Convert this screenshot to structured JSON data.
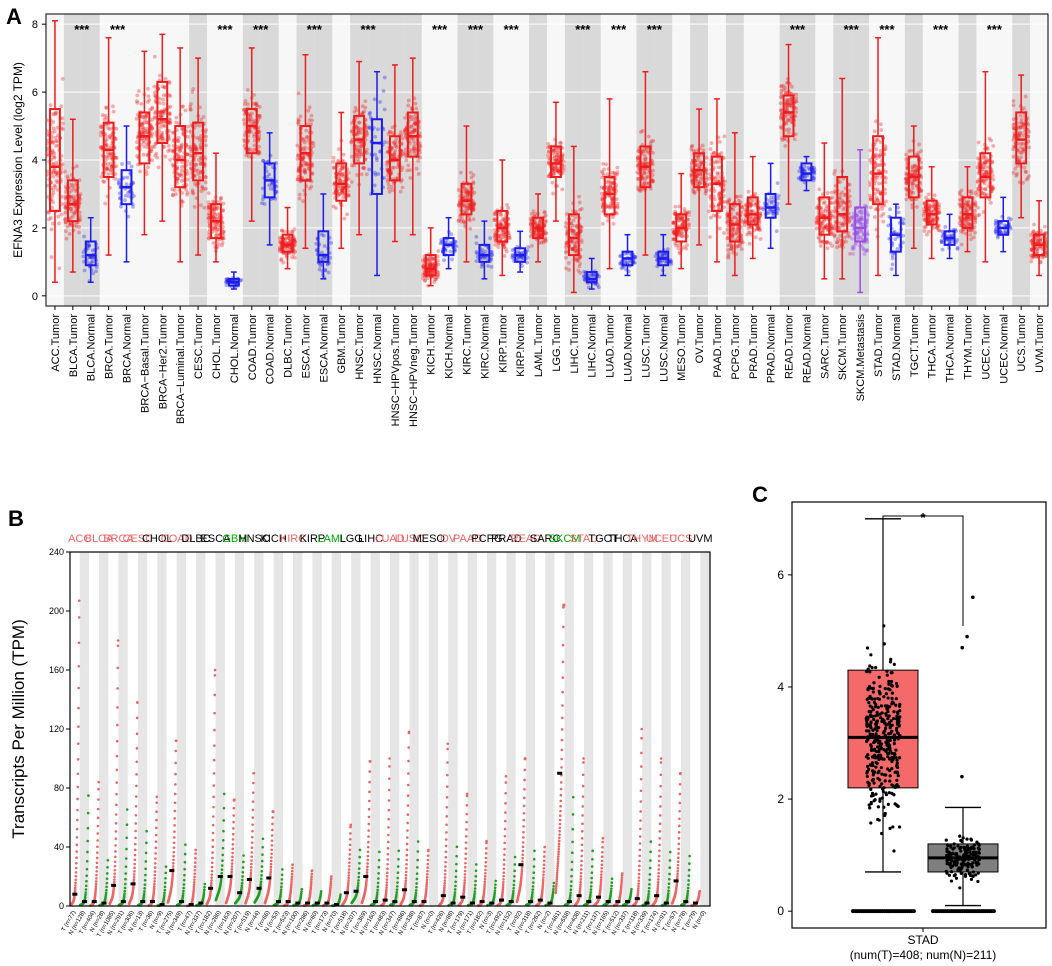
{
  "chart_data": [
    {
      "panel": "A",
      "type": "box",
      "ylabel": "EFNA3 Expression Level (log2 TPM)",
      "ylim": [
        -0.3,
        8.3
      ],
      "yticks": [
        0,
        2,
        4,
        6,
        8
      ],
      "categories": [
        "ACC.Tumor",
        "BLCA.Tumor",
        "BLCA.Normal",
        "BRCA.Tumor",
        "BRCA.Normal",
        "BRCA−Basal.Tumor",
        "BRCA−Her2.Tumor",
        "BRCA−Luminal.Tumor",
        "CESC.Tumor",
        "CHOL.Tumor",
        "CHOL.Normal",
        "COAD.Tumor",
        "COAD.Normal",
        "DLBC.Tumor",
        "ESCA.Tumor",
        "ESCA.Normal",
        "GBM.Tumor",
        "HNSC.Tumor",
        "HNSC.Normal",
        "HNSC−HPVpos.Tumor",
        "HNSC−HPVneg.Tumor",
        "KICH.Tumor",
        "KICH.Normal",
        "KIRC.Tumor",
        "KIRC.Normal",
        "KIRP.Tumor",
        "KIRP.Normal",
        "LAML.Tumor",
        "LGG.Tumor",
        "LIHC.Tumor",
        "LIHC.Normal",
        "LUAD.Tumor",
        "LUAD.Normal",
        "LUSC.Tumor",
        "LUSC.Normal",
        "MESO.Tumor",
        "OV.Tumor",
        "PAAD.Tumor",
        "PCPG.Tumor",
        "PRAD.Tumor",
        "PRAD.Normal",
        "READ.Tumor",
        "READ.Normal",
        "SARC.Tumor",
        "SKCM.Tumor",
        "SKCM.Metastasis",
        "STAD.Tumor",
        "STAD.Normal",
        "TGCT.Tumor",
        "THCA.Tumor",
        "THCA.Normal",
        "THYM.Tumor",
        "UCEC.Tumor",
        "UCEC.Normal",
        "UCS.Tumor",
        "UVM.Tumor"
      ],
      "boxes": [
        {
          "kind": "T",
          "q1": 2.5,
          "median": 3.8,
          "q3": 5.5,
          "lo": 0.4,
          "hi": 8.1
        },
        {
          "kind": "T",
          "q1": 2.2,
          "median": 2.7,
          "q3": 3.4,
          "lo": 0.7,
          "hi": 5.2
        },
        {
          "kind": "N",
          "q1": 0.9,
          "median": 1.2,
          "q3": 1.6,
          "lo": 0.4,
          "hi": 2.3
        },
        {
          "kind": "T",
          "q1": 3.5,
          "median": 4.3,
          "q3": 5.1,
          "lo": 1.2,
          "hi": 7.6
        },
        {
          "kind": "N",
          "q1": 2.7,
          "median": 3.2,
          "q3": 3.7,
          "lo": 1.0,
          "hi": 5.0
        },
        {
          "kind": "T",
          "q1": 3.9,
          "median": 4.7,
          "q3": 5.4,
          "lo": 1.8,
          "hi": 7.2
        },
        {
          "kind": "T",
          "q1": 4.5,
          "median": 5.2,
          "q3": 6.3,
          "lo": 2.2,
          "hi": 7.7
        },
        {
          "kind": "T",
          "q1": 3.2,
          "median": 4.0,
          "q3": 5.0,
          "lo": 1.0,
          "hi": 7.3
        },
        {
          "kind": "T",
          "q1": 3.4,
          "median": 4.2,
          "q3": 5.1,
          "lo": 1.2,
          "hi": 7.0
        },
        {
          "kind": "T",
          "q1": 1.7,
          "median": 2.2,
          "q3": 2.7,
          "lo": 1.0,
          "hi": 4.2
        },
        {
          "kind": "N",
          "q1": 0.3,
          "median": 0.4,
          "q3": 0.5,
          "lo": 0.2,
          "hi": 0.7
        },
        {
          "kind": "T",
          "q1": 4.2,
          "median": 5.0,
          "q3": 5.5,
          "lo": 2.2,
          "hi": 7.3
        },
        {
          "kind": "N",
          "q1": 2.9,
          "median": 3.4,
          "q3": 3.9,
          "lo": 1.5,
          "hi": 4.8
        },
        {
          "kind": "T",
          "q1": 1.3,
          "median": 1.5,
          "q3": 1.8,
          "lo": 0.8,
          "hi": 2.6
        },
        {
          "kind": "T",
          "q1": 3.4,
          "median": 4.2,
          "q3": 5.0,
          "lo": 1.4,
          "hi": 7.1
        },
        {
          "kind": "N",
          "q1": 1.0,
          "median": 1.2,
          "q3": 1.9,
          "lo": 0.5,
          "hi": 3.0
        },
        {
          "kind": "T",
          "q1": 2.8,
          "median": 3.3,
          "q3": 3.9,
          "lo": 1.4,
          "hi": 5.4
        },
        {
          "kind": "T",
          "q1": 3.9,
          "median": 4.6,
          "q3": 5.3,
          "lo": 1.8,
          "hi": 6.9
        },
        {
          "kind": "N",
          "q1": 3.0,
          "median": 4.5,
          "q3": 5.2,
          "lo": 0.6,
          "hi": 6.6
        },
        {
          "kind": "T",
          "q1": 3.4,
          "median": 4.0,
          "q3": 4.7,
          "lo": 1.6,
          "hi": 6.8
        },
        {
          "kind": "T",
          "q1": 4.1,
          "median": 4.7,
          "q3": 5.4,
          "lo": 1.8,
          "hi": 7.0
        },
        {
          "kind": "T",
          "q1": 0.6,
          "median": 0.8,
          "q3": 1.2,
          "lo": 0.3,
          "hi": 2.0
        },
        {
          "kind": "N",
          "q1": 1.2,
          "median": 1.5,
          "q3": 1.7,
          "lo": 0.8,
          "hi": 2.3
        },
        {
          "kind": "T",
          "q1": 2.4,
          "median": 2.8,
          "q3": 3.3,
          "lo": 1.0,
          "hi": 5.0
        },
        {
          "kind": "N",
          "q1": 1.0,
          "median": 1.2,
          "q3": 1.5,
          "lo": 0.5,
          "hi": 2.2
        },
        {
          "kind": "T",
          "q1": 1.6,
          "median": 2.0,
          "q3": 2.5,
          "lo": 0.6,
          "hi": 4.0
        },
        {
          "kind": "N",
          "q1": 1.0,
          "median": 1.2,
          "q3": 1.4,
          "lo": 0.7,
          "hi": 1.9
        },
        {
          "kind": "T",
          "q1": 1.7,
          "median": 2.0,
          "q3": 2.3,
          "lo": 1.0,
          "hi": 3.0
        },
        {
          "kind": "T",
          "q1": 3.5,
          "median": 3.9,
          "q3": 4.4,
          "lo": 2.2,
          "hi": 5.7
        },
        {
          "kind": "T",
          "q1": 1.2,
          "median": 1.7,
          "q3": 2.4,
          "lo": 0.1,
          "hi": 4.4
        },
        {
          "kind": "N",
          "q1": 0.4,
          "median": 0.5,
          "q3": 0.7,
          "lo": 0.2,
          "hi": 1.1
        },
        {
          "kind": "T",
          "q1": 2.4,
          "median": 3.0,
          "q3": 3.5,
          "lo": 0.8,
          "hi": 5.8
        },
        {
          "kind": "N",
          "q1": 0.9,
          "median": 1.1,
          "q3": 1.3,
          "lo": 0.6,
          "hi": 1.8
        },
        {
          "kind": "T",
          "q1": 3.2,
          "median": 3.8,
          "q3": 4.4,
          "lo": 1.2,
          "hi": 6.6
        },
        {
          "kind": "N",
          "q1": 0.9,
          "median": 1.1,
          "q3": 1.3,
          "lo": 0.6,
          "hi": 1.8
        },
        {
          "kind": "T",
          "q1": 1.6,
          "median": 2.0,
          "q3": 2.4,
          "lo": 0.8,
          "hi": 3.6
        },
        {
          "kind": "T",
          "q1": 3.2,
          "median": 3.7,
          "q3": 4.2,
          "lo": 1.5,
          "hi": 5.5
        },
        {
          "kind": "T",
          "q1": 2.5,
          "median": 3.3,
          "q3": 4.1,
          "lo": 1.0,
          "hi": 5.8
        },
        {
          "kind": "T",
          "q1": 1.6,
          "median": 2.1,
          "q3": 2.7,
          "lo": 0.6,
          "hi": 4.8
        },
        {
          "kind": "T",
          "q1": 2.1,
          "median": 2.4,
          "q3": 2.9,
          "lo": 1.1,
          "hi": 4.1
        },
        {
          "kind": "N",
          "q1": 2.3,
          "median": 2.6,
          "q3": 3.0,
          "lo": 1.4,
          "hi": 3.9
        },
        {
          "kind": "T",
          "q1": 4.7,
          "median": 5.4,
          "q3": 5.9,
          "lo": 2.7,
          "hi": 7.4
        },
        {
          "kind": "N",
          "q1": 3.4,
          "median": 3.6,
          "q3": 3.9,
          "lo": 3.1,
          "hi": 4.1
        },
        {
          "kind": "T",
          "q1": 1.8,
          "median": 2.3,
          "q3": 2.9,
          "lo": 0.5,
          "hi": 4.5
        },
        {
          "kind": "T",
          "q1": 1.9,
          "median": 2.4,
          "q3": 3.5,
          "lo": 0.5,
          "hi": 6.4
        },
        {
          "kind": "M",
          "q1": 1.6,
          "median": 2.0,
          "q3": 2.6,
          "lo": 0.1,
          "hi": 4.3
        },
        {
          "kind": "T",
          "q1": 2.7,
          "median": 3.6,
          "q3": 4.7,
          "lo": 0.6,
          "hi": 7.6
        },
        {
          "kind": "N",
          "q1": 1.3,
          "median": 1.8,
          "q3": 2.3,
          "lo": 0.6,
          "hi": 2.7
        },
        {
          "kind": "T",
          "q1": 2.9,
          "median": 3.5,
          "q3": 4.1,
          "lo": 1.4,
          "hi": 5.0
        },
        {
          "kind": "T",
          "q1": 2.1,
          "median": 2.4,
          "q3": 2.8,
          "lo": 1.1,
          "hi": 3.8
        },
        {
          "kind": "N",
          "q1": 1.5,
          "median": 1.7,
          "q3": 1.9,
          "lo": 1.1,
          "hi": 2.4
        },
        {
          "kind": "T",
          "q1": 2.0,
          "median": 2.4,
          "q3": 2.9,
          "lo": 1.3,
          "hi": 3.8
        },
        {
          "kind": "T",
          "q1": 2.9,
          "median": 3.5,
          "q3": 4.2,
          "lo": 1.0,
          "hi": 6.6
        },
        {
          "kind": "N",
          "q1": 1.8,
          "median": 2.0,
          "q3": 2.2,
          "lo": 1.3,
          "hi": 2.9
        },
        {
          "kind": "T",
          "q1": 3.9,
          "median": 4.6,
          "q3": 5.4,
          "lo": 2.3,
          "hi": 6.5
        },
        {
          "kind": "T",
          "q1": 1.2,
          "median": 1.5,
          "q3": 1.8,
          "lo": 0.6,
          "hi": 2.8
        }
      ],
      "significance": [
        {
          "category": "BLCA.Tumor",
          "label": "***"
        },
        {
          "category": "BRCA.Tumor",
          "label": "***"
        },
        {
          "category": "CHOL.Tumor",
          "label": "***"
        },
        {
          "category": "COAD.Tumor",
          "label": "***"
        },
        {
          "category": "ESCA.Tumor",
          "label": "***"
        },
        {
          "category": "HNSC.Tumor",
          "label": "***"
        },
        {
          "category": "KICH.Tumor",
          "label": "***"
        },
        {
          "category": "KIRC.Tumor",
          "label": "***"
        },
        {
          "category": "KIRP.Tumor",
          "label": "***"
        },
        {
          "category": "LIHC.Tumor",
          "label": "***"
        },
        {
          "category": "LUAD.Tumor",
          "label": "***"
        },
        {
          "category": "LUSC.Tumor",
          "label": "***"
        },
        {
          "category": "READ.Tumor",
          "label": "***"
        },
        {
          "category": "SKCM.Tumor",
          "label": "***"
        },
        {
          "category": "STAD.Tumor",
          "label": "***"
        },
        {
          "category": "THCA.Tumor",
          "label": "***"
        },
        {
          "category": "UCEC.Tumor",
          "label": "***"
        }
      ],
      "colors": {
        "tumor": "#ee1c1c",
        "normal": "#1c1cee",
        "metastasis": "#9a4ce8",
        "band": "#d9d9d9",
        "grid": "#ececec"
      }
    },
    {
      "panel": "B",
      "type": "dot-strip",
      "ylabel": "Transcripts Per Million (TPM)",
      "ylim": [
        0,
        240
      ],
      "yticks": [
        0,
        40,
        80,
        120,
        160,
        200,
        240
      ],
      "cancers": [
        {
          "name": "ACC",
          "color": "#f06464",
          "nt": 77,
          "nn": 128,
          "medT": 8,
          "medN": 3,
          "maxT": 207
        },
        {
          "name": "BLCA",
          "color": "#f06464",
          "nt": 404,
          "nn": 28,
          "medT": 3,
          "medN": 2,
          "maxT": 84
        },
        {
          "name": "BRCA",
          "color": "#f06464",
          "nt": 1085,
          "nn": 291,
          "medT": 14,
          "medN": 3,
          "maxT": 180
        },
        {
          "name": "CESC",
          "color": "#f06464",
          "nt": 306,
          "nn": 13,
          "medT": 15,
          "medN": 3,
          "maxT": 138
        },
        {
          "name": "CHOL",
          "color": "#000000",
          "nt": 36,
          "nn": 9,
          "medT": 3,
          "medN": 1,
          "maxT": 74
        },
        {
          "name": "COAD",
          "color": "#f06464",
          "nt": 275,
          "nn": 349,
          "medT": 24,
          "medN": 3,
          "maxT": 112
        },
        {
          "name": "DLBC",
          "color": "#000000",
          "nt": 47,
          "nn": 337,
          "medT": 1,
          "medN": 2,
          "maxT": 38
        },
        {
          "name": "ESCA",
          "color": "#000000",
          "nt": 182,
          "nn": 286,
          "medT": 12,
          "medN": 20,
          "maxT": 160
        },
        {
          "name": "GBM",
          "color": "#00aa00",
          "nt": 163,
          "nn": 207,
          "medT": 20,
          "medN": 9,
          "maxT": 72
        },
        {
          "name": "HNSC",
          "color": "#000000",
          "nt": 519,
          "nn": 44,
          "medT": 18,
          "medN": 12,
          "maxT": 90
        },
        {
          "name": "KICH",
          "color": "#000000",
          "nt": 66,
          "nn": 53,
          "medT": 19,
          "medN": 3,
          "maxT": 64
        },
        {
          "name": "KIRC",
          "color": "#f06464",
          "nt": 523,
          "nn": 100,
          "medT": 3,
          "medN": 2,
          "maxT": 28
        },
        {
          "name": "KIRP",
          "color": "#000000",
          "nt": 286,
          "nn": 60,
          "medT": 2,
          "medN": 2,
          "maxT": 24
        },
        {
          "name": "LAML",
          "color": "#00aa00",
          "nt": 173,
          "nn": 70,
          "medT": 2,
          "medN": 1,
          "maxT": 20
        },
        {
          "name": "LGG",
          "color": "#000000",
          "nt": 518,
          "nn": 207,
          "medT": 9,
          "medN": 10,
          "maxT": 55
        },
        {
          "name": "LIHC",
          "color": "#000000",
          "nt": 369,
          "nn": 160,
          "medT": 20,
          "medN": 3,
          "maxT": 98
        },
        {
          "name": "LUAD",
          "color": "#f06464",
          "nt": 483,
          "nn": 347,
          "medT": 4,
          "medN": 3,
          "maxT": 100
        },
        {
          "name": "LUSC",
          "color": "#f06464",
          "nt": 486,
          "nn": 338,
          "medT": 11,
          "medN": 3,
          "maxT": 118
        },
        {
          "name": "MESO",
          "color": "#000000",
          "nt": 87,
          "nn": 0,
          "medT": 3,
          "medN": 0,
          "maxT": 38
        },
        {
          "name": "OV",
          "color": "#f06464",
          "nt": 426,
          "nn": 88,
          "medT": 7,
          "medN": 2,
          "maxT": 110
        },
        {
          "name": "PAAD",
          "color": "#f06464",
          "nt": 179,
          "nn": 171,
          "medT": 6,
          "medN": 2,
          "maxT": 76
        },
        {
          "name": "PCPG",
          "color": "#000000",
          "nt": 182,
          "nn": 3,
          "medT": 3,
          "medN": 2,
          "maxT": 44
        },
        {
          "name": "PRAD",
          "color": "#000000",
          "nt": 492,
          "nn": 152,
          "medT": 4,
          "medN": 3,
          "maxT": 88
        },
        {
          "name": "READ",
          "color": "#f06464",
          "nt": 92,
          "nn": 318,
          "medT": 28,
          "medN": 3,
          "maxT": 100
        },
        {
          "name": "SARC",
          "color": "#000000",
          "nt": 262,
          "nn": 2,
          "medT": 4,
          "medN": 2,
          "maxT": 40
        },
        {
          "name": "SKCM",
          "color": "#00aa00",
          "nt": 461,
          "nn": 558,
          "medT": 90,
          "medN": 3,
          "maxT": 204
        },
        {
          "name": "STAD",
          "color": "#f06464",
          "nt": 408,
          "nn": 211,
          "medT": 7,
          "medN": 3,
          "maxT": 100
        },
        {
          "name": "TGCT",
          "color": "#000000",
          "nt": 137,
          "nn": 165,
          "medT": 6,
          "medN": 3,
          "maxT": 46
        },
        {
          "name": "THCA",
          "color": "#000000",
          "nt": 512,
          "nn": 337,
          "medT": 3,
          "medN": 3,
          "maxT": 22
        },
        {
          "name": "THYM",
          "color": "#f06464",
          "nt": 118,
          "nn": 339,
          "medT": 5,
          "medN": 2,
          "maxT": 120
        },
        {
          "name": "UCEC",
          "color": "#f06464",
          "nt": 174,
          "nn": 91,
          "medT": 7,
          "medN": 2,
          "maxT": 100
        },
        {
          "name": "UCS",
          "color": "#f06464",
          "nt": 57,
          "nn": 78,
          "medT": 17,
          "medN": 3,
          "maxT": 90
        },
        {
          "name": "UVM",
          "color": "#000000",
          "nt": 79,
          "nn": 0,
          "medT": 2,
          "medN": 0,
          "maxT": 10
        }
      ],
      "colors": {
        "tumor_dots": "#f06464",
        "normal_dots": "#1f9e1f",
        "band": "#e6e6e6",
        "median": "#000000"
      }
    },
    {
      "panel": "C",
      "type": "box",
      "title": "",
      "xlabel_line1": "STAD",
      "xlabel_line2": "(num(T)=408; num(N)=211)",
      "ylim": [
        -0.3,
        7.3
      ],
      "yticks": [
        0,
        2,
        4,
        6
      ],
      "significance": "*",
      "boxes": [
        {
          "name": "Tumor",
          "n": 408,
          "q1": 2.2,
          "median": 3.1,
          "q3": 4.3,
          "lo": 0.7,
          "hi": 7.0,
          "fill": "#f46a6a"
        },
        {
          "name": "Normal",
          "n": 211,
          "q1": 0.7,
          "median": 0.95,
          "q3": 1.2,
          "lo": 0.1,
          "hi": 1.85,
          "fill": "#7f7f7f",
          "outliers": [
            2.4,
            4.7,
            4.9,
            5.6
          ]
        }
      ],
      "sig_color": "#e31a1c"
    }
  ],
  "panel_labels": {
    "a": "A",
    "b": "B",
    "c": "C"
  }
}
